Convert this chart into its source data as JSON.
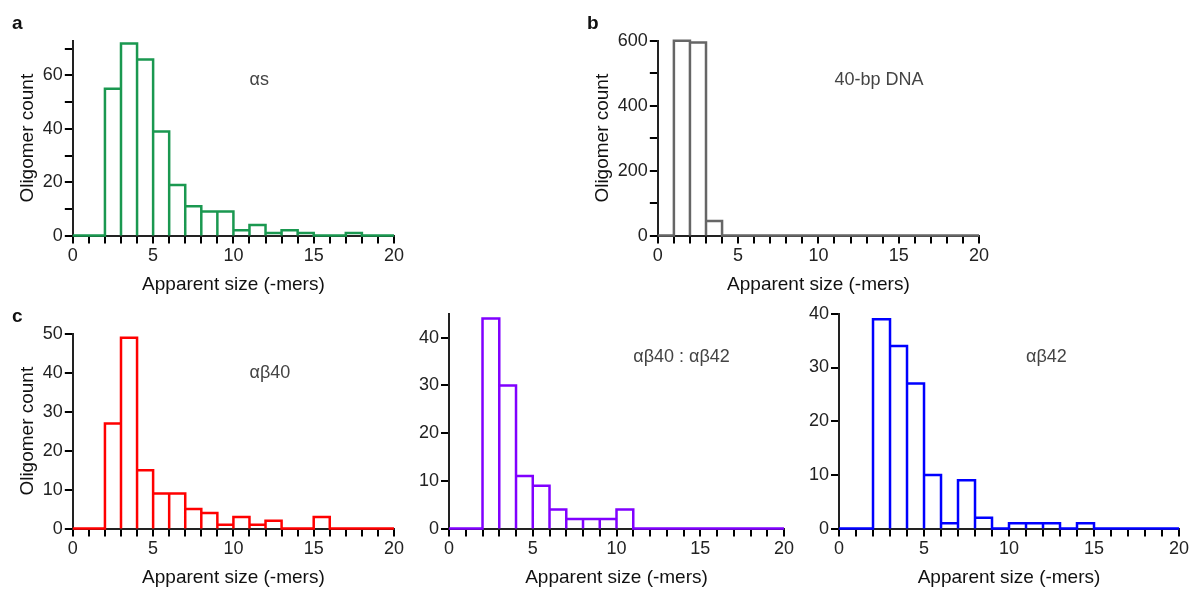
{
  "chart_data": [
    {
      "type": "histogram",
      "title": "a",
      "xlabel": "Apparent size (-mers)",
      "ylabel": "Oligomer count",
      "annotations": [
        "αs"
      ],
      "color": "#1a9850",
      "bins": [
        0,
        1,
        2,
        3,
        4,
        5,
        6,
        7,
        8,
        9,
        10,
        11,
        12,
        13,
        14,
        15,
        16,
        17,
        18,
        19,
        20
      ],
      "values": [
        0,
        0,
        55,
        72,
        66,
        39,
        19,
        11,
        9,
        9,
        2,
        4,
        1,
        2,
        1,
        0,
        0,
        1,
        0,
        0
      ],
      "xlim": [
        0,
        20
      ],
      "xticks": [
        0,
        {
          "value": 1,
          "label": null
        },
        {
          "value": 2,
          "label": null
        },
        {
          "value": 3,
          "label": null
        },
        {
          "value": 4,
          "label": null
        },
        5,
        {
          "value": 6,
          "label": null
        },
        {
          "value": 7,
          "label": null
        },
        {
          "value": 8,
          "label": null
        },
        {
          "value": 9,
          "label": null
        },
        10,
        {
          "value": 11,
          "label": null
        },
        {
          "value": 12,
          "label": null
        },
        {
          "value": 13,
          "label": null
        },
        {
          "value": 14,
          "label": null
        },
        15,
        {
          "value": 16,
          "label": null
        },
        {
          "value": 17,
          "label": null
        },
        {
          "value": 18,
          "label": null
        },
        {
          "value": 19,
          "label": null
        },
        20
      ],
      "ylim": [
        0,
        73
      ],
      "yticks": [
        0,
        {
          "value": 10,
          "label": null
        },
        20,
        {
          "value": 30,
          "label": null
        },
        40,
        {
          "value": 50,
          "label": null
        },
        60,
        {
          "value": 70,
          "label": null
        }
      ],
      "grid": false
    },
    {
      "type": "histogram",
      "title": "b",
      "xlabel": "Apparent size (-mers)",
      "ylabel": "Oligomer count",
      "annotations": [
        "40-bp DNA"
      ],
      "color": "#666666",
      "bins": [
        0,
        1,
        2,
        3,
        4,
        5,
        6,
        7,
        8,
        9,
        10,
        11,
        12,
        13,
        14,
        15,
        16,
        17,
        18,
        19,
        20
      ],
      "values": [
        0,
        600,
        595,
        45,
        0,
        0,
        0,
        0,
        0,
        0,
        0,
        0,
        0,
        0,
        0,
        0,
        0,
        0,
        0,
        0
      ],
      "xlim": [
        0,
        20
      ],
      "xticks": [
        0,
        {
          "value": 1,
          "label": null
        },
        {
          "value": 2,
          "label": null
        },
        {
          "value": 3,
          "label": null
        },
        {
          "value": 4,
          "label": null
        },
        5,
        {
          "value": 6,
          "label": null
        },
        {
          "value": 7,
          "label": null
        },
        {
          "value": 8,
          "label": null
        },
        {
          "value": 9,
          "label": null
        },
        10,
        {
          "value": 11,
          "label": null
        },
        {
          "value": 12,
          "label": null
        },
        {
          "value": 13,
          "label": null
        },
        {
          "value": 14,
          "label": null
        },
        15,
        {
          "value": 16,
          "label": null
        },
        {
          "value": 17,
          "label": null
        },
        {
          "value": 18,
          "label": null
        },
        {
          "value": 19,
          "label": null
        },
        20
      ],
      "ylim": [
        0,
        600
      ],
      "yticks": [
        0,
        {
          "value": 100,
          "label": null
        },
        200,
        {
          "value": 300,
          "label": null
        },
        400,
        {
          "value": 500,
          "label": null
        },
        600
      ],
      "grid": false
    },
    {
      "type": "histogram",
      "title": "c",
      "xlabel": "Apparent size (-mers)",
      "ylabel": "Oligomer count",
      "annotations": [
        "αβ40"
      ],
      "color": "#ff0000",
      "bins": [
        0,
        1,
        2,
        3,
        4,
        5,
        6,
        7,
        8,
        9,
        10,
        11,
        12,
        13,
        14,
        15,
        16,
        17,
        18,
        19,
        20
      ],
      "values": [
        0,
        0,
        27,
        49,
        15,
        9,
        9,
        5,
        4,
        1,
        3,
        1,
        2,
        0,
        0,
        3,
        0,
        0,
        0,
        0
      ],
      "xlim": [
        0,
        20
      ],
      "xticks": [
        0,
        {
          "value": 1,
          "label": null
        },
        {
          "value": 2,
          "label": null
        },
        {
          "value": 3,
          "label": null
        },
        {
          "value": 4,
          "label": null
        },
        5,
        {
          "value": 6,
          "label": null
        },
        {
          "value": 7,
          "label": null
        },
        {
          "value": 8,
          "label": null
        },
        {
          "value": 9,
          "label": null
        },
        10,
        {
          "value": 11,
          "label": null
        },
        {
          "value": 12,
          "label": null
        },
        {
          "value": 13,
          "label": null
        },
        {
          "value": 14,
          "label": null
        },
        15,
        {
          "value": 16,
          "label": null
        },
        {
          "value": 17,
          "label": null
        },
        {
          "value": 18,
          "label": null
        },
        {
          "value": 19,
          "label": null
        },
        20
      ],
      "ylim": [
        0,
        50
      ],
      "yticks": [
        0,
        10,
        20,
        30,
        40,
        50
      ],
      "grid": false
    },
    {
      "type": "histogram",
      "xlabel": "Apparent size (-mers)",
      "annotations": [
        "αβ40 : αβ42"
      ],
      "color": "#8000ff",
      "bins": [
        0,
        1,
        2,
        3,
        4,
        5,
        6,
        7,
        8,
        9,
        10,
        11,
        12,
        13,
        14,
        15,
        16,
        17,
        18,
        19,
        20
      ],
      "values": [
        0,
        0,
        44,
        30,
        11,
        9,
        4,
        2,
        2,
        2,
        4,
        0,
        0,
        0,
        0,
        0,
        0,
        0,
        0,
        0
      ],
      "xlim": [
        0,
        20
      ],
      "xticks": [
        0,
        {
          "value": 1,
          "label": null
        },
        {
          "value": 2,
          "label": null
        },
        {
          "value": 3,
          "label": null
        },
        {
          "value": 4,
          "label": null
        },
        5,
        {
          "value": 6,
          "label": null
        },
        {
          "value": 7,
          "label": null
        },
        {
          "value": 8,
          "label": null
        },
        {
          "value": 9,
          "label": null
        },
        10,
        {
          "value": 11,
          "label": null
        },
        {
          "value": 12,
          "label": null
        },
        {
          "value": 13,
          "label": null
        },
        {
          "value": 14,
          "label": null
        },
        15,
        {
          "value": 16,
          "label": null
        },
        {
          "value": 17,
          "label": null
        },
        {
          "value": 18,
          "label": null
        },
        {
          "value": 19,
          "label": null
        },
        20
      ],
      "ylim": [
        0,
        45
      ],
      "yticks": [
        0,
        10,
        20,
        30,
        40
      ],
      "grid": false
    },
    {
      "type": "histogram",
      "xlabel": "Apparent size (-mers)",
      "annotations": [
        "αβ42"
      ],
      "color": "#0000ff",
      "bins": [
        0,
        1,
        2,
        3,
        4,
        5,
        6,
        7,
        8,
        9,
        10,
        11,
        12,
        13,
        14,
        15,
        16,
        17,
        18,
        19,
        20
      ],
      "values": [
        0,
        0,
        39,
        34,
        27,
        10,
        1,
        9,
        2,
        0,
        1,
        1,
        1,
        0,
        1,
        0,
        0,
        0,
        0,
        0
      ],
      "xlim": [
        0,
        20
      ],
      "xticks": [
        0,
        {
          "value": 1,
          "label": null
        },
        {
          "value": 2,
          "label": null
        },
        {
          "value": 3,
          "label": null
        },
        {
          "value": 4,
          "label": null
        },
        5,
        {
          "value": 6,
          "label": null
        },
        {
          "value": 7,
          "label": null
        },
        {
          "value": 8,
          "label": null
        },
        {
          "value": 9,
          "label": null
        },
        10,
        {
          "value": 11,
          "label": null
        },
        {
          "value": 12,
          "label": null
        },
        {
          "value": 13,
          "label": null
        },
        {
          "value": 14,
          "label": null
        },
        15,
        {
          "value": 16,
          "label": null
        },
        {
          "value": 17,
          "label": null
        },
        {
          "value": 18,
          "label": null
        },
        {
          "value": 19,
          "label": null
        },
        20
      ],
      "ylim": [
        0,
        40
      ],
      "yticks": [
        0,
        10,
        20,
        30,
        40
      ],
      "grid": false
    }
  ]
}
